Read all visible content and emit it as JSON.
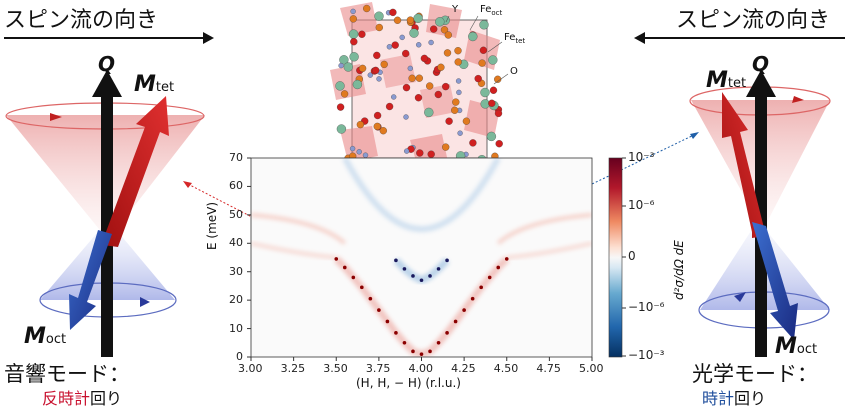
{
  "headers": {
    "left": "スピン流の向き",
    "right": "スピン流の向き"
  },
  "left_panel": {
    "q_label": "Q",
    "m_tet_main": "M",
    "m_tet_sub": "tet",
    "m_oct_main": "M",
    "m_oct_sub": "oct",
    "mode_title": "音響モード：",
    "rotation_part1": "反時計",
    "rotation_part2": "回り"
  },
  "right_panel": {
    "q_label": "Q",
    "m_tet_main": "M",
    "m_tet_sub": "tet",
    "m_oct_main": "M",
    "m_oct_sub": "oct",
    "mode_title": "光学モード：",
    "rotation_part1": "時計",
    "rotation_part2": "回り"
  },
  "crystal_legend": {
    "y": "Y",
    "fe_oct_main": "Fe",
    "fe_oct_sub": "oct",
    "fe_tet_main": "Fe",
    "fe_tet_sub": "tet",
    "o": "O"
  },
  "colors": {
    "red": "#d62728",
    "blue": "#1f5fa8",
    "dark_red": "#8b0000",
    "dark_blue": "#1a1a5e",
    "mode_red": "#c8102e",
    "mode_blue": "#1f4e9c"
  },
  "chart_data": {
    "type": "heatmap",
    "xlabel": "(H, H, − H) (r.l.u.)",
    "ylabel": "E (meV)",
    "colorbar_label": "d²σ/dΩ dE",
    "x_ticks": [
      "3.00",
      "3.25",
      "3.50",
      "3.75",
      "4.00",
      "4.25",
      "4.50",
      "4.75",
      "5.00"
    ],
    "y_ticks": [
      "0",
      "10",
      "20",
      "30",
      "40",
      "50",
      "60",
      "70"
    ],
    "colorbar_ticks": [
      "10⁻³",
      "10⁻⁶",
      "0",
      "−10⁻⁶",
      "−10⁻³"
    ],
    "xlim": [
      3.0,
      5.0
    ],
    "ylim": [
      0,
      70
    ],
    "acoustic_points": [
      {
        "x": 3.5,
        "y": 34.5
      },
      {
        "x": 3.55,
        "y": 31.5
      },
      {
        "x": 3.6,
        "y": 28.0
      },
      {
        "x": 3.65,
        "y": 24.5
      },
      {
        "x": 3.7,
        "y": 20.5
      },
      {
        "x": 3.75,
        "y": 16.5
      },
      {
        "x": 3.8,
        "y": 12.5
      },
      {
        "x": 3.85,
        "y": 8.5
      },
      {
        "x": 3.9,
        "y": 5.0
      },
      {
        "x": 3.95,
        "y": 2.0
      },
      {
        "x": 4.0,
        "y": 1.0
      },
      {
        "x": 4.05,
        "y": 2.0
      },
      {
        "x": 4.1,
        "y": 5.0
      },
      {
        "x": 4.15,
        "y": 8.5
      },
      {
        "x": 4.2,
        "y": 12.5
      },
      {
        "x": 4.25,
        "y": 16.5
      },
      {
        "x": 4.3,
        "y": 20.5
      },
      {
        "x": 4.35,
        "y": 24.5
      },
      {
        "x": 4.4,
        "y": 28.0
      },
      {
        "x": 4.45,
        "y": 31.5
      },
      {
        "x": 4.5,
        "y": 34.5
      }
    ],
    "optical_points": [
      {
        "x": 3.85,
        "y": 34.0
      },
      {
        "x": 3.9,
        "y": 31.0
      },
      {
        "x": 3.95,
        "y": 28.5
      },
      {
        "x": 4.0,
        "y": 27.0
      },
      {
        "x": 4.05,
        "y": 28.5
      },
      {
        "x": 4.1,
        "y": 31.0
      },
      {
        "x": 4.15,
        "y": 34.0
      }
    ]
  }
}
